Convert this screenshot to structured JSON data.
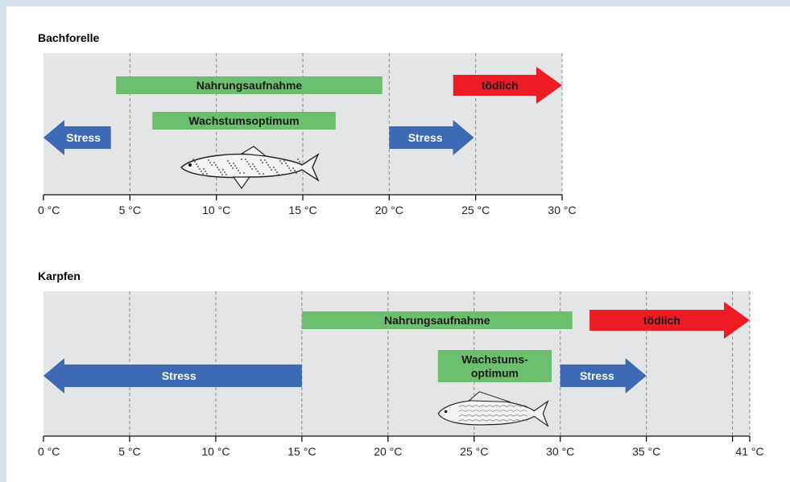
{
  "chart_data": [
    {
      "type": "range-diagram",
      "title": "Bachforelle",
      "axis_max": 30,
      "ticks": [
        0,
        5,
        10,
        15,
        20,
        25,
        30
      ],
      "tick_labels": [
        "0 °C",
        "5 °C",
        "10 °C",
        "15 °C",
        "20 °C",
        "25 °C",
        "30 °C"
      ],
      "fish_icon": "trout-icon",
      "bars": [
        {
          "label": "Nahrungsaufnahme",
          "start": 4.2,
          "end": 19.6,
          "color": "#6bbf6e",
          "row": 0
        },
        {
          "label": "Wachstumsoptimum",
          "start": 6.3,
          "end": 16.9,
          "color": "#6bbf6e",
          "row": 1
        }
      ],
      "arrows": [
        {
          "label": "Stress",
          "start": 0,
          "end": 3.9,
          "dir": "left",
          "color": "#3d6ab5",
          "row": 2
        },
        {
          "label": "Stress",
          "start": 20,
          "end": 24.9,
          "dir": "right",
          "color": "#3d6ab5",
          "row": 2
        },
        {
          "label": "tödlich",
          "start": 23.7,
          "end": 30,
          "dir": "right",
          "color": "#ed1c24",
          "row": 0
        }
      ]
    },
    {
      "type": "range-diagram",
      "title": "Karpfen",
      "axis_max": 41,
      "ticks": [
        0,
        5,
        10,
        15,
        20,
        25,
        30,
        35,
        40,
        41
      ],
      "tick_labels": [
        "0 °C",
        "5 °C",
        "10 °C",
        "15 °C",
        "20 °C",
        "25 °C",
        "30 °C",
        "35 °C",
        "",
        "41 °C"
      ],
      "fish_icon": "carp-icon",
      "bars": [
        {
          "label": "Nahrungsaufnahme",
          "start": 15,
          "end": 30.7,
          "color": "#6bbf6e",
          "row": 0
        },
        {
          "label": "Wachstums-\noptimum",
          "start": 22.9,
          "end": 29.5,
          "color": "#6bbf6e",
          "row": 1
        }
      ],
      "arrows": [
        {
          "label": "Stress",
          "start": 0,
          "end": 15,
          "dir": "left",
          "color": "#3d6ab5",
          "row": 2
        },
        {
          "label": "Stress",
          "start": 30,
          "end": 35,
          "dir": "right",
          "color": "#3d6ab5",
          "row": 2
        },
        {
          "label": "tödlich",
          "start": 31.7,
          "end": 41,
          "dir": "right",
          "color": "#ed1c24",
          "row": 0
        }
      ]
    }
  ]
}
